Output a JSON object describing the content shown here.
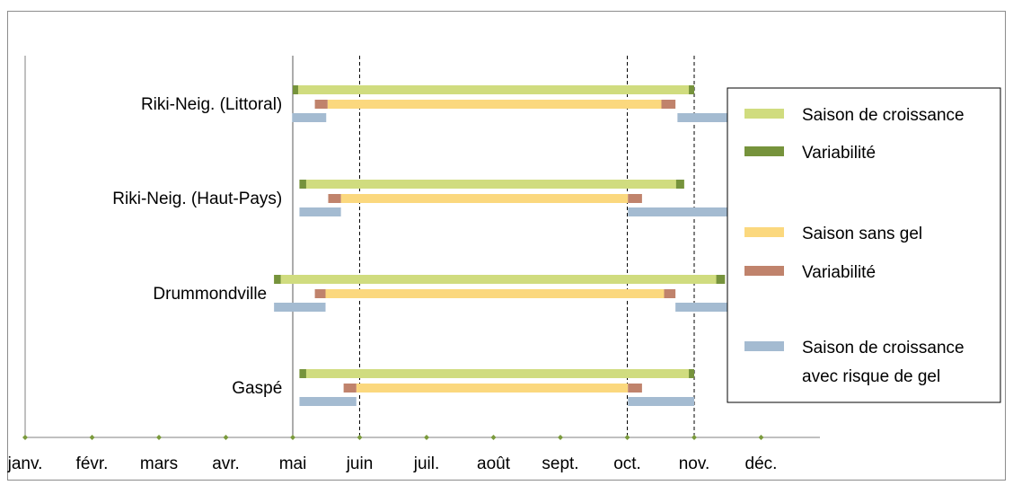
{
  "chart_data": {
    "type": "gantt-range",
    "months": [
      "janv.",
      "févr.",
      "mars",
      "avr.",
      "mai",
      "juin",
      "juil.",
      "août",
      "sept.",
      "oct.",
      "nov.",
      "déc."
    ],
    "reference_lines": [
      "mai",
      "juin",
      "oct.",
      "nov."
    ],
    "stations": [
      {
        "name": "Riki-Neig. (Littoral)",
        "growing_season": {
          "start": 4.0,
          "start_var_end": 4.08,
          "end_var_start": 9.92,
          "end": 10.0
        },
        "frost_free_season": {
          "var_start": 4.33,
          "start": 4.52,
          "end": 9.51,
          "var_end": 9.72
        },
        "frost_risk_periods": [
          [
            3.99,
            4.5
          ],
          [
            9.75,
            10.6
          ]
        ]
      },
      {
        "name": "Riki-Neig. (Haut-Pays)",
        "growing_season": {
          "start": 4.1,
          "start_var_end": 4.2,
          "end_var_start": 9.73,
          "end": 9.85
        },
        "frost_free_season": {
          "var_start": 4.53,
          "start": 4.72,
          "end": 9.01,
          "var_end": 9.22
        },
        "frost_risk_periods": [
          [
            4.1,
            4.72
          ],
          [
            9.01,
            10.52
          ]
        ]
      },
      {
        "name": "Drummondville",
        "growing_season": {
          "start": 3.72,
          "start_var_end": 3.82,
          "end_var_start": 10.33,
          "end": 10.46
        },
        "frost_free_season": {
          "var_start": 4.33,
          "start": 4.49,
          "end": 9.55,
          "var_end": 9.72
        },
        "frost_risk_periods": [
          [
            3.72,
            4.49
          ],
          [
            9.72,
            10.77
          ]
        ]
      },
      {
        "name": "Gaspé",
        "growing_season": {
          "start": 4.1,
          "start_var_end": 4.2,
          "end_var_start": 9.92,
          "end": 10.0
        },
        "frost_free_season": {
          "var_start": 4.76,
          "start": 4.95,
          "end": 9.01,
          "var_end": 9.22
        },
        "frost_risk_periods": [
          [
            4.1,
            4.95
          ],
          [
            9.01,
            10.0
          ]
        ]
      }
    ],
    "legend": [
      {
        "label": "Saison de croissance",
        "color": "#d0dc7f"
      },
      {
        "label": "Variabilité",
        "color": "#76933c"
      },
      {
        "label": "Saison sans gel",
        "color": "#fbd87e"
      },
      {
        "label": "Variabilité",
        "color": "#c0836c"
      },
      {
        "label": "Saison de croissance",
        "label2": "avec risque de gel",
        "color": "#a4bbd1"
      }
    ],
    "colors": {
      "growing": "#d0dc7f",
      "growing_var": "#76933c",
      "frost_free": "#fbd87e",
      "frost_free_var": "#c0836c",
      "frost_risk": "#a4bbd1",
      "axis": "#808080",
      "tick": "#7a9a3c"
    }
  }
}
